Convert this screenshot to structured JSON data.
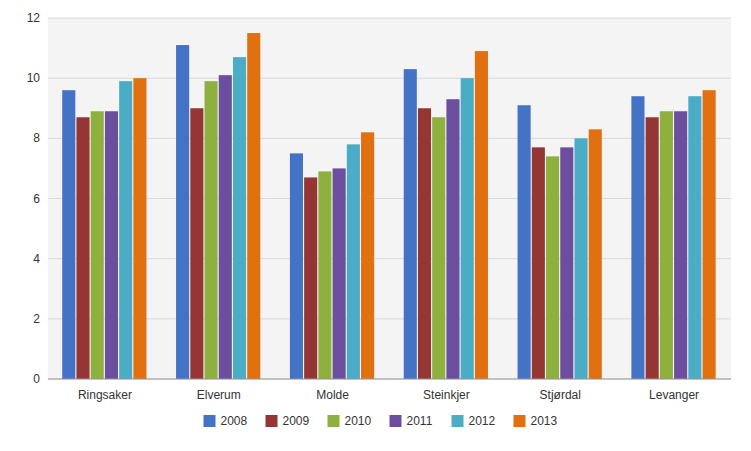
{
  "chart_data": {
    "type": "bar",
    "categories": [
      "Ringsaker",
      "Elverum",
      "Molde",
      "Steinkjer",
      "Stjørdal",
      "Levanger"
    ],
    "series": [
      {
        "name": "2008",
        "color": "#4472C4",
        "values": [
          9.6,
          11.1,
          7.5,
          10.3,
          9.1,
          9.4
        ]
      },
      {
        "name": "2009",
        "color": "#943634",
        "values": [
          8.7,
          9.0,
          6.7,
          9.0,
          7.7,
          8.7
        ]
      },
      {
        "name": "2010",
        "color": "#8DB03F",
        "values": [
          8.9,
          9.9,
          6.9,
          8.7,
          7.4,
          8.9
        ]
      },
      {
        "name": "2011",
        "color": "#6B4F9E",
        "values": [
          8.9,
          10.1,
          7.0,
          9.3,
          7.7,
          8.9
        ]
      },
      {
        "name": "2012",
        "color": "#4BACC6",
        "values": [
          9.9,
          10.7,
          7.8,
          10.0,
          8.0,
          9.4
        ]
      },
      {
        "name": "2013",
        "color": "#E07010",
        "values": [
          10.0,
          11.5,
          8.2,
          10.9,
          8.3,
          9.6
        ]
      }
    ],
    "ylim": [
      0,
      12
    ],
    "yticks": [
      0,
      2,
      4,
      6,
      8,
      10,
      12
    ],
    "grid": true,
    "legend": "bottom"
  }
}
